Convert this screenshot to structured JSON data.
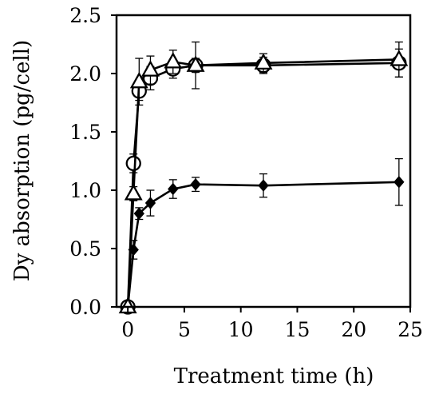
{
  "chart_data": {
    "type": "line",
    "title": "",
    "xlabel": "Treatment time (h)",
    "ylabel": "Dy absorption (pg/cell)",
    "xlim": [
      -1,
      25
    ],
    "ylim": [
      0,
      2.5
    ],
    "x_ticks": [
      "0",
      "5",
      "10",
      "15",
      "20",
      "25"
    ],
    "y_ticks": [
      "0.0",
      "0.5",
      "1.0",
      "1.5",
      "2.0",
      "2.5"
    ],
    "grid": false,
    "legend": "none",
    "series": [
      {
        "marker": "circle-open",
        "x": [
          0,
          0.5,
          1,
          2,
          4,
          6,
          12,
          24
        ],
        "y": [
          0.0,
          1.23,
          1.85,
          1.96,
          2.04,
          2.07,
          2.07,
          2.09
        ],
        "err": [
          0.0,
          0.08,
          0.08,
          0.1,
          0.08,
          0.06,
          0.07,
          0.12
        ]
      },
      {
        "marker": "triangle-open",
        "x": [
          0,
          0.5,
          1,
          2,
          4,
          6,
          12,
          24
        ],
        "y": [
          0.0,
          0.97,
          1.93,
          2.03,
          2.1,
          2.07,
          2.09,
          2.12
        ],
        "err": [
          0.0,
          0.06,
          0.2,
          0.12,
          0.1,
          0.2,
          0.08,
          0.15
        ]
      },
      {
        "marker": "diamond-filled",
        "x": [
          0,
          0.5,
          1,
          2,
          4,
          6,
          12,
          24
        ],
        "y": [
          0.0,
          0.49,
          0.8,
          0.89,
          1.01,
          1.05,
          1.04,
          1.07
        ],
        "err": [
          0.0,
          0.08,
          0.05,
          0.11,
          0.08,
          0.06,
          0.1,
          0.2
        ]
      }
    ]
  }
}
